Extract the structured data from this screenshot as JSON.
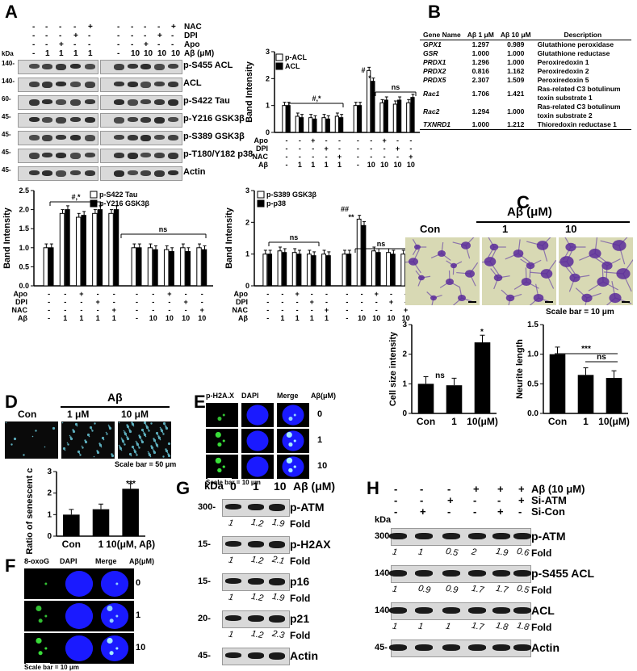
{
  "letters": {
    "A": "A",
    "B": "B",
    "C": "C",
    "D": "D",
    "E": "E",
    "F": "F",
    "G": "G",
    "H": "H"
  },
  "panelA": {
    "treatments": [
      {
        "name": "NAC",
        "vals": [
          "-",
          "-",
          "-",
          "-",
          "+",
          "-",
          "-",
          "-",
          "-",
          "+"
        ]
      },
      {
        "name": "DPI",
        "vals": [
          "-",
          "-",
          "-",
          "+",
          "-",
          "-",
          "-",
          "-",
          "+",
          "-"
        ]
      },
      {
        "name": "Apo",
        "vals": [
          "-",
          "-",
          "+",
          "-",
          "-",
          "-",
          "-",
          "+",
          "-",
          "-"
        ]
      },
      {
        "name": "Aβ (μM)",
        "vals": [
          "-",
          "1",
          "1",
          "1",
          "1",
          "-",
          "10",
          "10",
          "10",
          "10"
        ]
      }
    ],
    "kda_header": "kDa",
    "blots": [
      {
        "kda": "140-",
        "label": "p-S455 ACL"
      },
      {
        "kda": "140-",
        "label": "ACL"
      },
      {
        "kda": "60-",
        "label": "p-S422 Tau"
      },
      {
        "kda": "45-",
        "label": "p-Y216 GSK3β"
      },
      {
        "kda": "45-",
        "label": "p-S389 GSK3β"
      },
      {
        "kda": "45-",
        "label": "p-T180/Y182 p38"
      },
      {
        "kda": "45-",
        "label": "Actin"
      }
    ]
  },
  "chartA1": {
    "type": "bar",
    "ylabel": "Band Intensity",
    "ylim": [
      0,
      3
    ],
    "yticks": [
      "0",
      "1",
      "2",
      "3"
    ],
    "series": [
      {
        "name": "p-ACL",
        "values": [
          1.0,
          0.6,
          0.55,
          0.55,
          0.6,
          1.0,
          2.3,
          1.1,
          1.05,
          1.1
        ]
      },
      {
        "name": "ACL",
        "values": [
          1.0,
          0.55,
          0.5,
          0.5,
          0.55,
          1.0,
          1.9,
          1.2,
          1.2,
          1.3
        ]
      }
    ],
    "annotations": [
      "#,*",
      "#",
      "*",
      "ns"
    ],
    "rows": [
      {
        "name": "Apo",
        "vals": [
          "-",
          "-",
          "+",
          "-",
          "-",
          "-",
          "-",
          "+",
          "-",
          "-"
        ]
      },
      {
        "name": "DPI",
        "vals": [
          "-",
          "-",
          "-",
          "+",
          "-",
          "-",
          "-",
          "-",
          "+",
          "-"
        ]
      },
      {
        "name": "NAC",
        "vals": [
          "-",
          "-",
          "-",
          "-",
          "+",
          "-",
          "-",
          "-",
          "-",
          "+"
        ]
      },
      {
        "name": "Aβ",
        "vals": [
          "-",
          "1",
          "1",
          "1",
          "1",
          "-",
          "10",
          "10",
          "10",
          "10"
        ]
      }
    ]
  },
  "chartA2": {
    "type": "bar",
    "ylabel": "Band Intensity",
    "ylim": [
      0,
      2.5
    ],
    "yticks": [
      "0.0",
      "0.5",
      "1.0",
      "1.5",
      "2.0",
      "2.5"
    ],
    "series": [
      {
        "name": "p-S422 Tau",
        "values": [
          1.0,
          1.9,
          1.8,
          1.9,
          1.9,
          1.0,
          1.0,
          0.95,
          1.0,
          1.0
        ]
      },
      {
        "name": "p-Y216 GSK3β",
        "values": [
          1.0,
          2.0,
          1.85,
          2.0,
          2.0,
          1.0,
          0.95,
          0.9,
          0.9,
          0.95
        ]
      }
    ],
    "annotations": [
      "#,*",
      "ns"
    ],
    "rows": [
      {
        "name": "Apo",
        "vals": [
          "-",
          "-",
          "+",
          "-",
          "-",
          "-",
          "-",
          "+",
          "-",
          "-"
        ]
      },
      {
        "name": "DPI",
        "vals": [
          "-",
          "-",
          "-",
          "+",
          "-",
          "-",
          "-",
          "-",
          "+",
          "-"
        ]
      },
      {
        "name": "NAC",
        "vals": [
          "-",
          "-",
          "-",
          "-",
          "+",
          "-",
          "-",
          "-",
          "-",
          "+"
        ]
      },
      {
        "name": "Aβ",
        "vals": [
          "-",
          "1",
          "1",
          "1",
          "1",
          "-",
          "10",
          "10",
          "10",
          "10"
        ]
      }
    ]
  },
  "chartA3": {
    "type": "bar",
    "ylabel": "Band Intensity",
    "ylim": [
      0,
      3
    ],
    "yticks": [
      "0",
      "1",
      "2",
      "3"
    ],
    "series": [
      {
        "name": "p-S389 GSK3β",
        "values": [
          1.0,
          1.1,
          1.05,
          1.0,
          1.0,
          1.0,
          2.1,
          1.1,
          1.05,
          1.0
        ]
      },
      {
        "name": "p-p38",
        "values": [
          1.0,
          1.05,
          1.0,
          0.95,
          0.95,
          1.0,
          1.9,
          1.05,
          1.0,
          0.95
        ]
      }
    ],
    "annotations": [
      "ns",
      "##",
      "**",
      "ns"
    ],
    "rows": [
      {
        "name": "Apo",
        "vals": [
          "-",
          "-",
          "+",
          "-",
          "-",
          "-",
          "-",
          "+",
          "-",
          "-"
        ]
      },
      {
        "name": "DPI",
        "vals": [
          "-",
          "-",
          "-",
          "+",
          "-",
          "-",
          "-",
          "-",
          "+",
          "-"
        ]
      },
      {
        "name": "NAC",
        "vals": [
          "-",
          "-",
          "-",
          "-",
          "+",
          "-",
          "-",
          "-",
          "-",
          "+"
        ]
      },
      {
        "name": "Aβ",
        "vals": [
          "-",
          "1",
          "1",
          "1",
          "1",
          "-",
          "10",
          "10",
          "10",
          "10"
        ]
      }
    ]
  },
  "tableB": {
    "headers": [
      "Gene Name",
      "Aβ 1 μM",
      "Aβ 10 μM",
      "Description"
    ],
    "rows": [
      [
        "GPX1",
        "1.297",
        "0.989",
        "Glutathione peroxidase"
      ],
      [
        "GSR",
        "1.000",
        "1.000",
        "Glutathione reductase"
      ],
      [
        "PRDX1",
        "1.296",
        "1.000",
        "Peroxiredoxin 1"
      ],
      [
        "PRDX2",
        "0.816",
        "1.162",
        "Peroxiredoxin 2"
      ],
      [
        "PRDX5",
        "2.307",
        "1.509",
        "Peroxiredoxin 5"
      ],
      [
        "Rac1",
        "1.706",
        "1.421",
        "Ras-related C3 botulinum toxin substrate 1"
      ],
      [
        "Rac2",
        "1.294",
        "1.000",
        "Ras-related C3 botulinum toxin substrate 2"
      ],
      [
        "TXNRD1",
        "1.000",
        "1.212",
        "Thioredoxin reductase 1"
      ]
    ]
  },
  "panelC": {
    "title": "Aβ (μM)",
    "labels": [
      "Con",
      "1",
      "10"
    ],
    "scale": "Scale bar = 10 μm"
  },
  "chartC1": {
    "type": "bar",
    "ylabel": "Cell size intensity",
    "ylim": [
      0,
      3
    ],
    "yticks": [
      "0",
      "1",
      "2",
      "3"
    ],
    "categories": [
      "Con",
      "1",
      "10(μM)"
    ],
    "values": [
      1.0,
      0.95,
      2.4
    ],
    "annotations": [
      "ns",
      "*"
    ]
  },
  "chartC2": {
    "type": "bar",
    "ylabel": "Neurite length",
    "ylim": [
      0,
      1.5
    ],
    "yticks": [
      "0.0",
      "0.5",
      "1.0",
      "1.5"
    ],
    "categories": [
      "Con",
      "1",
      "10(μM)"
    ],
    "values": [
      1.0,
      0.65,
      0.6
    ],
    "annotations": [
      "***",
      "ns"
    ]
  },
  "panelD": {
    "title": "Aβ",
    "labels": [
      "Con",
      "1 μM",
      "10 μM"
    ],
    "scale": "Scale bar = 50 μm"
  },
  "chartD": {
    "type": "bar",
    "ylabel": "Ratio of senescent cells",
    "ylim": [
      0,
      3
    ],
    "yticks": [
      "0",
      "1",
      "2",
      "3"
    ],
    "categories": [
      "Con",
      "1",
      "10(μM, Aβ)"
    ],
    "values": [
      1.0,
      1.25,
      2.2
    ],
    "annotations": [
      "***"
    ]
  },
  "panelE": {
    "cols": [
      "p-H2A.X",
      "DAPI",
      "Merge",
      "Aβ(μM)"
    ],
    "rows": [
      "0",
      "1",
      "10"
    ],
    "scale": "Scale bar = 10 μm"
  },
  "panelF": {
    "cols": [
      "8-oxoG",
      "DAPI",
      "Merge",
      "Aβ(μM)"
    ],
    "rows": [
      "0",
      "1",
      "10"
    ],
    "scale": "Scale bar = 10 μm"
  },
  "panelG": {
    "header": "Aβ (μM)",
    "kda": "kDa",
    "cols": [
      "0",
      "1",
      "10"
    ],
    "blots": [
      {
        "kda": "300-",
        "label": "p-ATM",
        "fold": [
          "1",
          "1.2",
          "1.9"
        ]
      },
      {
        "kda": "15-",
        "label": "p-H2AX",
        "fold": [
          "1",
          "1.2",
          "2.1"
        ]
      },
      {
        "kda": "15-",
        "label": "p16",
        "fold": [
          "1",
          "1.2",
          "1.9"
        ]
      },
      {
        "kda": "20-",
        "label": "p21",
        "fold": [
          "1",
          "1.2",
          "2.3"
        ]
      },
      {
        "kda": "45-",
        "label": "Actin",
        "fold": []
      }
    ],
    "fold_label": "Fold"
  },
  "panelH": {
    "kda": "kDa",
    "rows": [
      {
        "name": "Aβ (10 μM)",
        "vals": [
          "-",
          "-",
          "-",
          "+",
          "+",
          "+"
        ]
      },
      {
        "name": "Si-ATM",
        "vals": [
          "-",
          "-",
          "+",
          "-",
          "-",
          "+"
        ]
      },
      {
        "name": "Si-Con",
        "vals": [
          "-",
          "+",
          "-",
          "-",
          "+",
          "-"
        ]
      }
    ],
    "blots": [
      {
        "kda": "300-",
        "label": "p-ATM",
        "fold": [
          "1",
          "1",
          "0.5",
          "2",
          "1.9",
          "0.6"
        ]
      },
      {
        "kda": "140-",
        "label": "p-S455 ACL",
        "fold": [
          "1",
          "0.9",
          "0.9",
          "1.7",
          "1.7",
          "0.5"
        ]
      },
      {
        "kda": "140-",
        "label": "ACL",
        "fold": [
          "1",
          "1",
          "1",
          "1.7",
          "1.8",
          "1.8"
        ]
      },
      {
        "kda": "45-",
        "label": "Actin",
        "fold": []
      }
    ],
    "fold_label": "Fold"
  }
}
